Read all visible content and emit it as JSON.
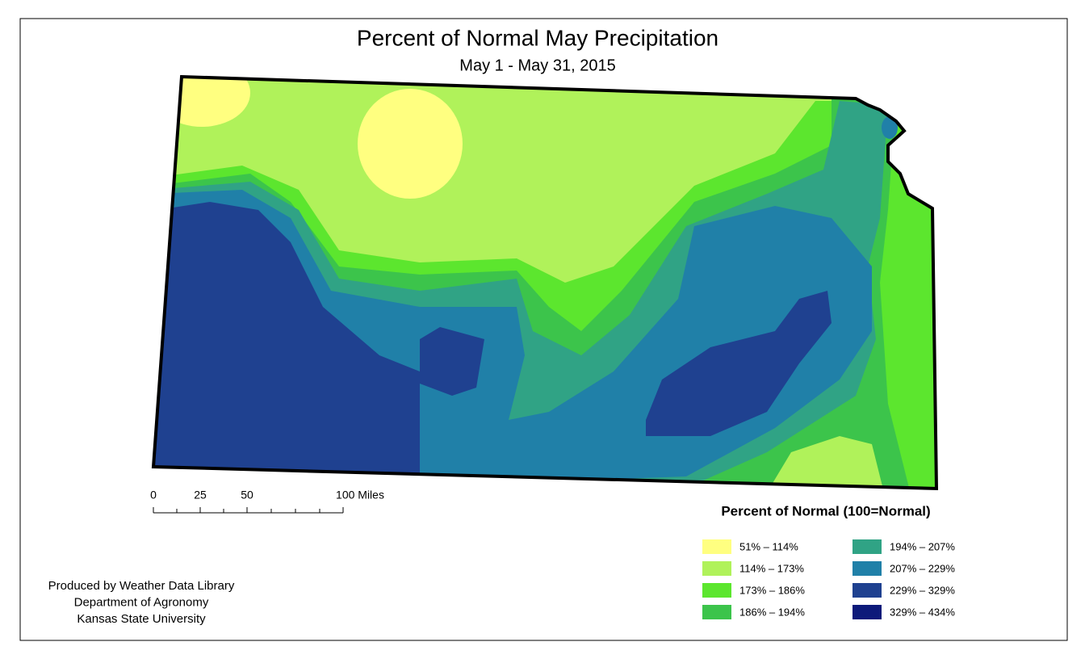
{
  "header": {
    "title": "Percent of Normal May Precipitation",
    "subtitle": "May 1 - May 31, 2015"
  },
  "scale_bar": {
    "labels": [
      "0",
      "25",
      "50",
      "100 Miles"
    ]
  },
  "legend": {
    "title": "Percent of Normal (100=Normal)",
    "items": [
      {
        "label": "51% – 114%",
        "color": "#ffff80"
      },
      {
        "label": "114% – 173%",
        "color": "#b0f25a"
      },
      {
        "label": "173% – 186%",
        "color": "#5ce62e"
      },
      {
        "label": "186% – 194%",
        "color": "#3cc44b"
      },
      {
        "label": "194% – 207%",
        "color": "#30a385"
      },
      {
        "label": "207% – 229%",
        "color": "#2080a8"
      },
      {
        "label": "229% – 329%",
        "color": "#1f4190"
      },
      {
        "label": "329% – 434%",
        "color": "#0d1a7a"
      }
    ]
  },
  "credits": [
    "Produced by Weather Data Library",
    "Department of Agronomy",
    "Kansas State University"
  ]
}
